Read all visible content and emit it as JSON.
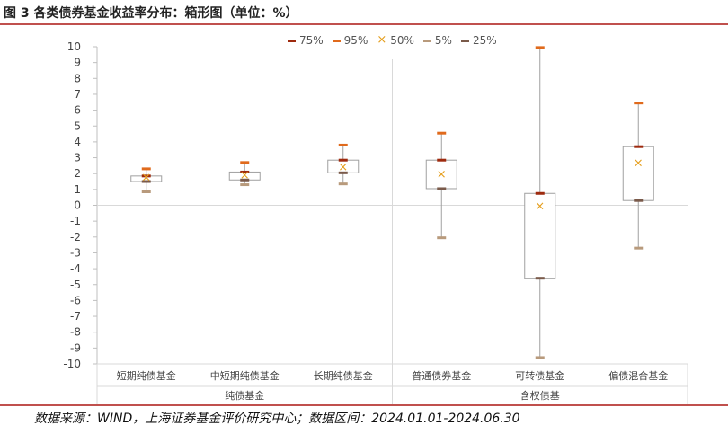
{
  "header": {
    "title": "图 3 各类债券基金收益率分布：箱形图（单位：%）"
  },
  "footer": {
    "source": "数据来源：WIND，上海证券基金评价研究中心；数据区间：2024.01.01-2024.06.30"
  },
  "colors": {
    "accent_rule": "#c0504d",
    "p75": "#9e2a0e",
    "p95": "#e06a1c",
    "p50": "#e59f1e",
    "p5": "#b89a7c",
    "p25": "#7a5a4a",
    "box_border": "#a0a0a0"
  },
  "chart_data": {
    "type": "box",
    "ylim": [
      -10,
      10
    ],
    "yticks": [
      10,
      9,
      8,
      7,
      6,
      5,
      4,
      3,
      2,
      1,
      0,
      -1,
      -2,
      -3,
      -4,
      -5,
      -6,
      -7,
      -8,
      -9,
      -10
    ],
    "legend": [
      {
        "key": "p75",
        "label": "75%",
        "marker": "dash"
      },
      {
        "key": "p95",
        "label": "95%",
        "marker": "dash"
      },
      {
        "key": "p50",
        "label": "50%",
        "marker": "x"
      },
      {
        "key": "p5",
        "label": "5%",
        "marker": "dash"
      },
      {
        "key": "p25",
        "label": "25%",
        "marker": "dash"
      }
    ],
    "categories": [
      "短期纯债基金",
      "中短期纯债基金",
      "长期纯债基金",
      "普通债券基金",
      "可转债基金",
      "偏债混合基金"
    ],
    "groups": [
      {
        "label": "纯债基金",
        "categories": [
          0,
          1,
          2
        ]
      },
      {
        "label": "含权债基",
        "categories": [
          3,
          4,
          5
        ]
      }
    ],
    "series": [
      {
        "category": "短期纯债基金",
        "p5": 0.85,
        "p25": 1.5,
        "p50": 1.75,
        "p75": 1.85,
        "p95": 2.3
      },
      {
        "category": "中短期纯债基金",
        "p5": 1.3,
        "p25": 1.6,
        "p50": 1.9,
        "p75": 2.1,
        "p95": 2.7
      },
      {
        "category": "长期纯债基金",
        "p5": 1.35,
        "p25": 2.05,
        "p50": 2.4,
        "p75": 2.85,
        "p95": 3.8
      },
      {
        "category": "普通债券基金",
        "p5": -2.05,
        "p25": 1.05,
        "p50": 1.95,
        "p75": 2.85,
        "p95": 4.55
      },
      {
        "category": "可转债基金",
        "p5": -9.6,
        "p25": -4.6,
        "p50": -0.05,
        "p75": 0.75,
        "p95": 9.95
      },
      {
        "category": "偏债混合基金",
        "p5": -2.7,
        "p25": 0.3,
        "p50": 2.65,
        "p75": 3.7,
        "p95": 6.45
      }
    ]
  }
}
